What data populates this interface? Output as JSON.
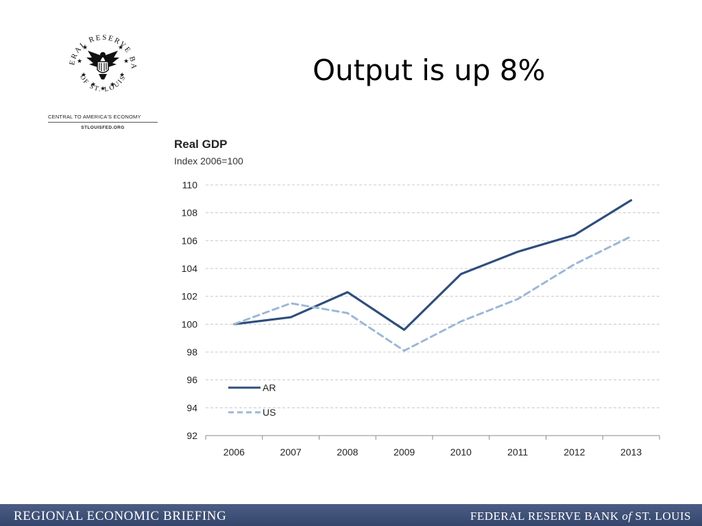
{
  "logo": {
    "seal_text_top": "FEDERAL RESERVE BANK",
    "seal_text_bottom": "OF ST. LOUIS",
    "tagline": "CENTRAL TO AMERICA'S ECONOMY",
    "site": "STLOUISFED.ORG",
    "icon": "eagle-seal-icon"
  },
  "slide": {
    "title": "Output is up 8%"
  },
  "footer": {
    "left": "REGIONAL ECONOMIC BRIEFING",
    "right_pre": "FEDERAL RESERVE BANK ",
    "right_of": "of",
    "right_post": " ST. LOUIS",
    "color": "#3f5078"
  },
  "chart_data": {
    "type": "line",
    "title": "Real GDP",
    "subtitle": "Index 2006=100",
    "x": [
      "2006",
      "2007",
      "2008",
      "2009",
      "2010",
      "2011",
      "2012",
      "2013"
    ],
    "ylim": [
      92,
      110
    ],
    "yticks": [
      "92",
      "94",
      "96",
      "98",
      "100",
      "102",
      "104",
      "106",
      "108",
      "110"
    ],
    "grid": true,
    "legend_position": "bottom-left",
    "series": [
      {
        "name": "AR",
        "color": "#2e4e7e",
        "dash": false,
        "values": [
          100,
          100.5,
          102.3,
          99.6,
          103.6,
          105.2,
          106.4,
          108.9
        ]
      },
      {
        "name": "US",
        "color": "#9bb7d9",
        "dash": true,
        "values": [
          100,
          101.5,
          100.8,
          98.1,
          100.2,
          101.8,
          104.3,
          106.3
        ]
      }
    ]
  }
}
